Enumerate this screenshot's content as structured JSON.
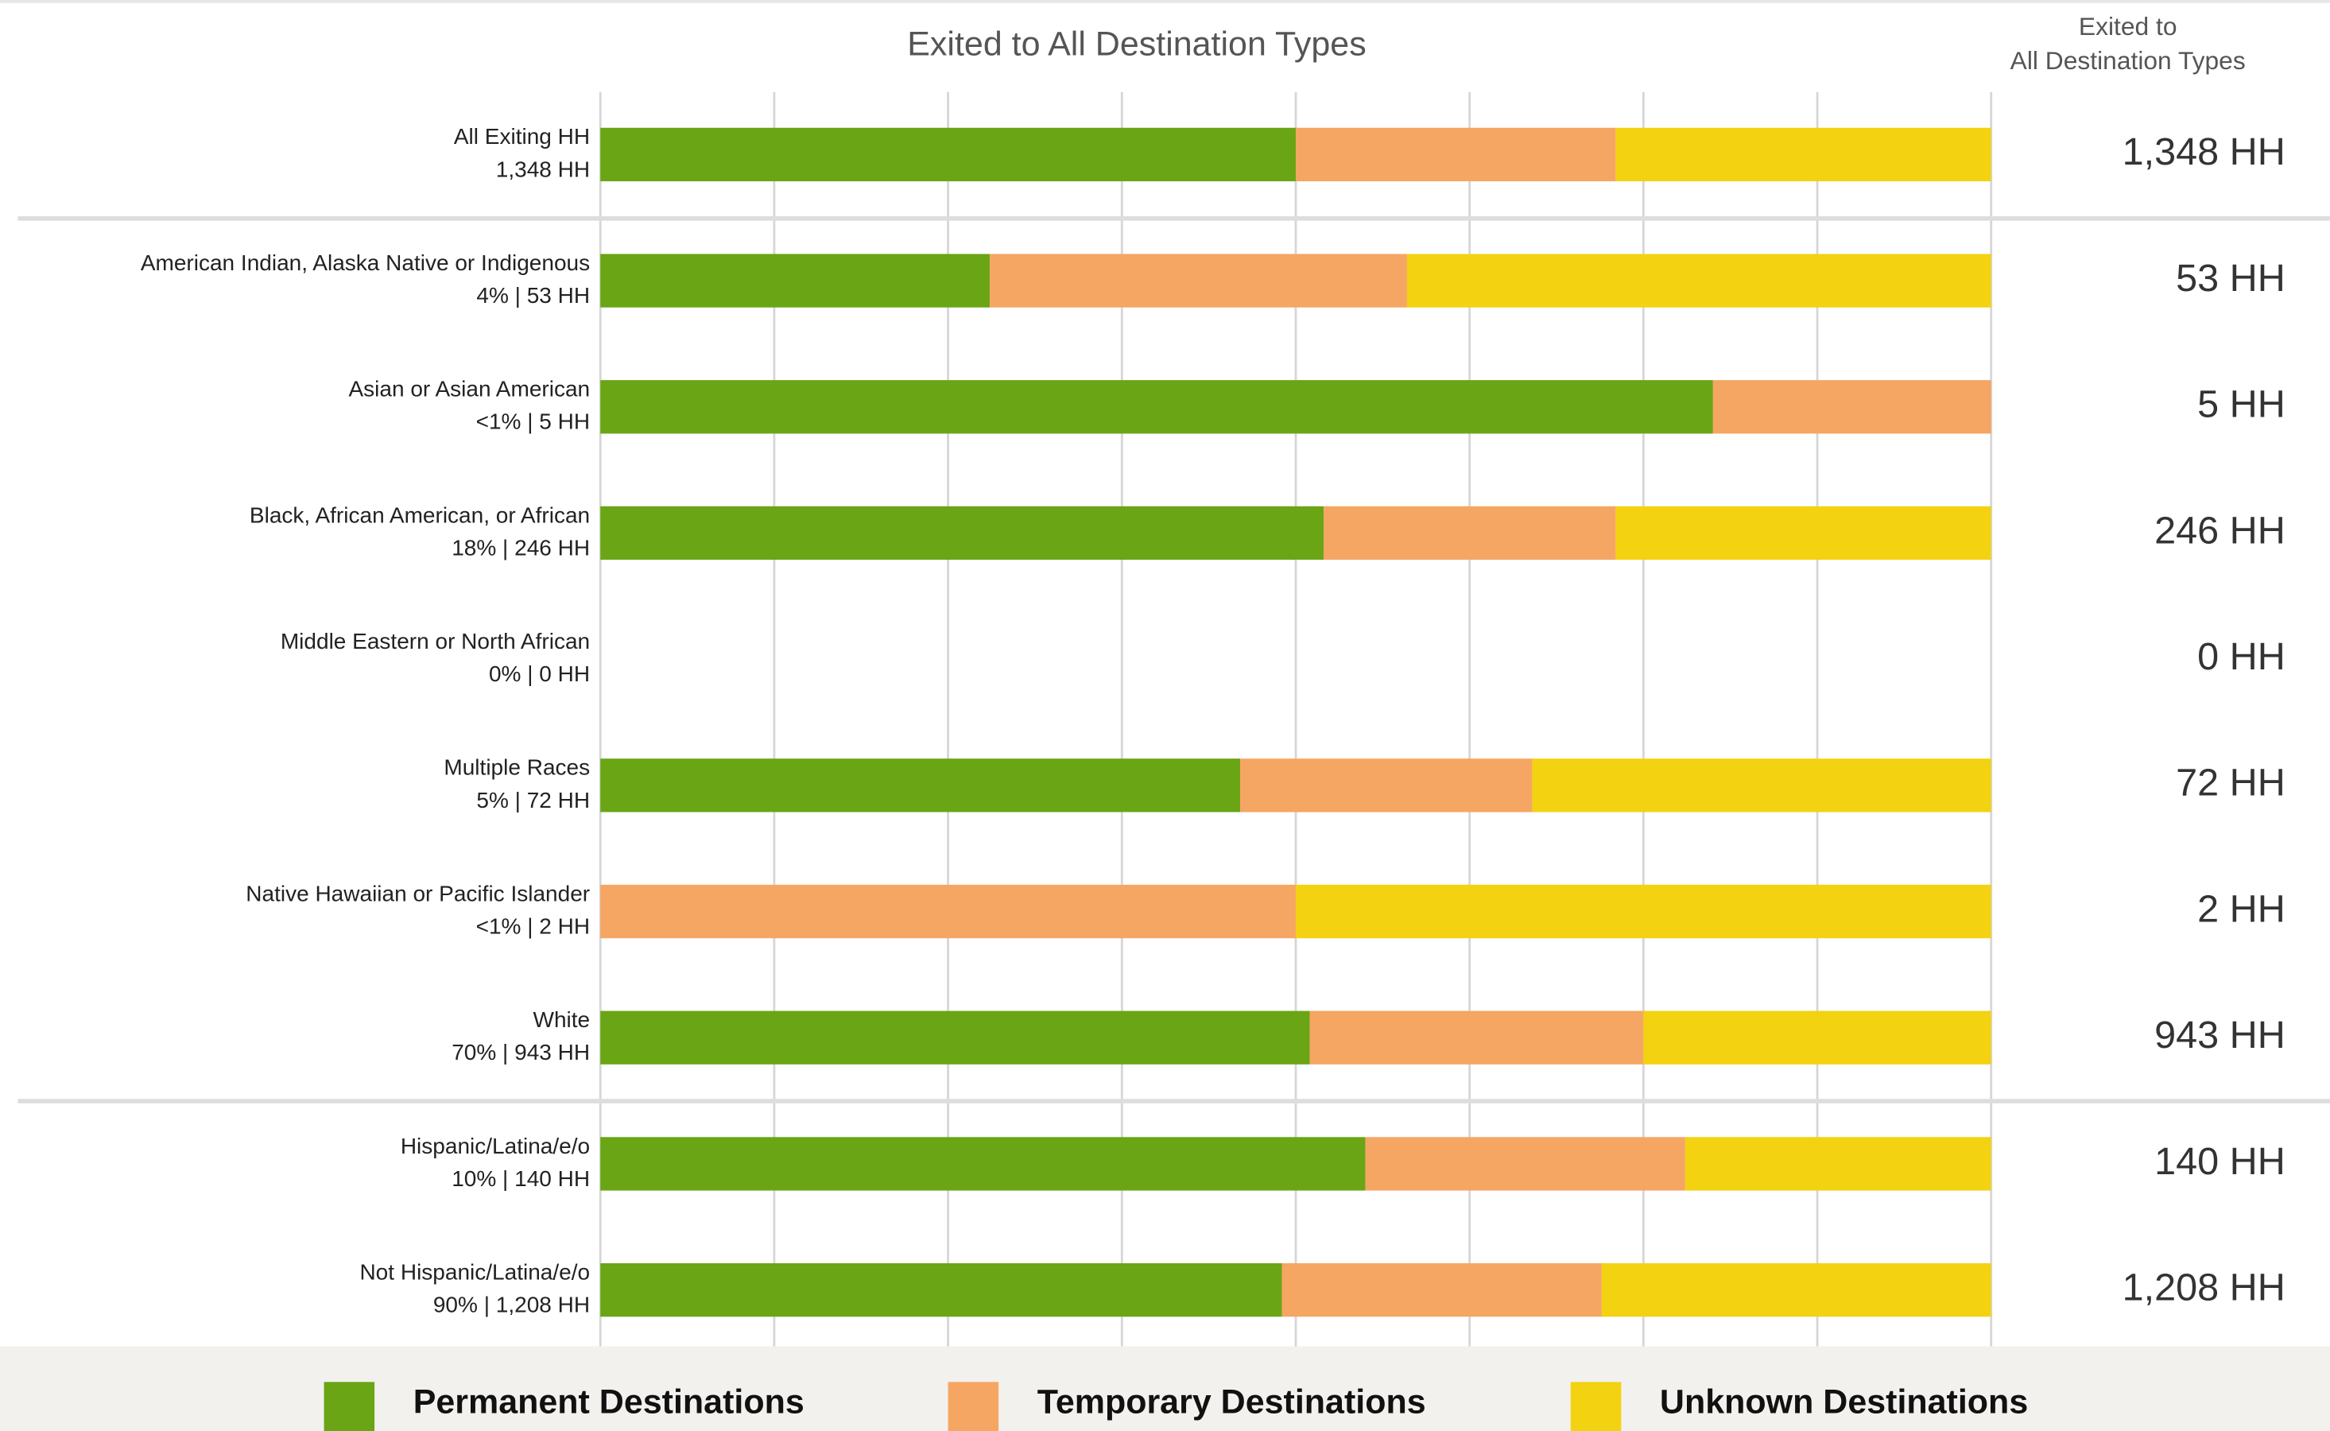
{
  "chart_data": {
    "type": "stacked_barh",
    "title": "Exited to All Destination Types",
    "right_header": [
      "Exited to",
      "All Destination Types"
    ],
    "categories": [
      "All Exiting HH",
      "American Indian, Alaska Native or Indigenous",
      "Asian or Asian American",
      "Black, African American, or African",
      "Middle Eastern or North African",
      "Multiple Races",
      "Native Hawaiian or Pacific Islander",
      "White",
      "Hispanic/Latina/e/o",
      "Not Hispanic/Latina/e/o"
    ],
    "category_details": [
      "1,348 HH",
      "4% | 53 HH",
      "<1% | 5 HH",
      "18% | 246 HH",
      "0% | 0 HH",
      "5% | 72 HH",
      "<1% | 2 HH",
      "70% | 943 HH",
      "10% | 140 HH",
      "90% | 1,208 HH"
    ],
    "totals": [
      "1,348 HH",
      "53 HH",
      "5 HH",
      "246 HH",
      "0 HH",
      "72 HH",
      "2 HH",
      "943 HH",
      "140 HH",
      "1,208 HH"
    ],
    "series": [
      {
        "name": "Permanent Destinations",
        "color": "#6aa516",
        "values": [
          50,
          28,
          80,
          52,
          0,
          46,
          0,
          51,
          55,
          49
        ]
      },
      {
        "name": "Temporary Destinations",
        "color": "#f5a663",
        "values": [
          23,
          30,
          20,
          21,
          0,
          21,
          50,
          24,
          23,
          23
        ]
      },
      {
        "name": "Unknown Destinations",
        "color": "#f3d211",
        "values": [
          27,
          42,
          0,
          27,
          0,
          33,
          50,
          25,
          22,
          28
        ]
      }
    ],
    "xlim": [
      0,
      100
    ],
    "xticks": [
      0,
      12.5,
      25,
      37.5,
      50,
      62.5,
      75,
      87.5,
      100
    ],
    "grid": true
  }
}
